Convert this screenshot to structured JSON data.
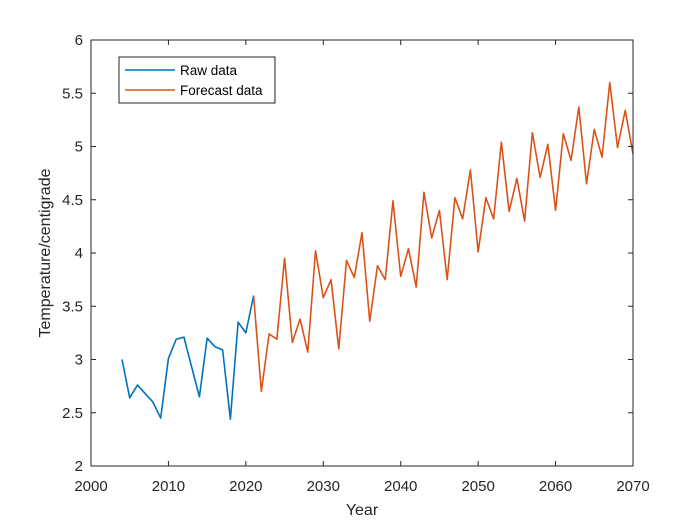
{
  "chart_data": {
    "type": "line",
    "title": "",
    "xlabel": "Year",
    "ylabel": "Temperature/centigrade",
    "xlim": [
      2000,
      2070
    ],
    "ylim": [
      2,
      6
    ],
    "xticks": [
      2000,
      2010,
      2020,
      2030,
      2040,
      2050,
      2060,
      2070
    ],
    "yticks": [
      2,
      2.5,
      3,
      3.5,
      4,
      4.5,
      5,
      5.5,
      6
    ],
    "ytick_labels": [
      "2",
      "2.5",
      "3",
      "3.5",
      "4",
      "4.5",
      "5",
      "5.5",
      "6"
    ],
    "grid": false,
    "legend_position": "top-left",
    "series": [
      {
        "name": "Raw data",
        "color": "#0072BD",
        "x": [
          2004,
          2005,
          2006,
          2007,
          2008,
          2009,
          2010,
          2011,
          2012,
          2013,
          2014,
          2015,
          2016,
          2017,
          2018,
          2019,
          2020,
          2021
        ],
        "y": [
          3.0,
          2.64,
          2.76,
          2.68,
          2.6,
          2.45,
          3.01,
          3.19,
          3.21,
          2.93,
          2.65,
          3.2,
          3.12,
          3.09,
          2.44,
          3.35,
          3.25,
          3.6
        ]
      },
      {
        "name": "Forecast data",
        "color": "#D95319",
        "x": [
          2021,
          2022,
          2023,
          2024,
          2025,
          2026,
          2027,
          2028,
          2029,
          2030,
          2031,
          2032,
          2033,
          2034,
          2035,
          2036,
          2037,
          2038,
          2039,
          2040,
          2041,
          2042,
          2043,
          2044,
          2045,
          2046,
          2047,
          2048,
          2049,
          2050,
          2051,
          2052,
          2053,
          2054,
          2055,
          2056,
          2057,
          2058,
          2059,
          2060,
          2061,
          2062,
          2063,
          2064,
          2065,
          2066,
          2067,
          2068,
          2069,
          2070
        ],
        "y": [
          3.6,
          2.7,
          3.24,
          3.19,
          3.95,
          3.16,
          3.38,
          3.07,
          4.02,
          3.58,
          3.75,
          3.1,
          3.93,
          3.77,
          4.19,
          3.36,
          3.88,
          3.75,
          4.49,
          3.78,
          4.04,
          3.68,
          4.57,
          4.14,
          4.4,
          3.75,
          4.52,
          4.32,
          4.78,
          4.01,
          4.52,
          4.32,
          5.04,
          4.39,
          4.7,
          4.3,
          5.13,
          4.71,
          5.02,
          4.4,
          5.12,
          4.87,
          5.37,
          4.65,
          5.16,
          4.9,
          5.6,
          4.99,
          5.34,
          4.93
        ]
      }
    ]
  }
}
